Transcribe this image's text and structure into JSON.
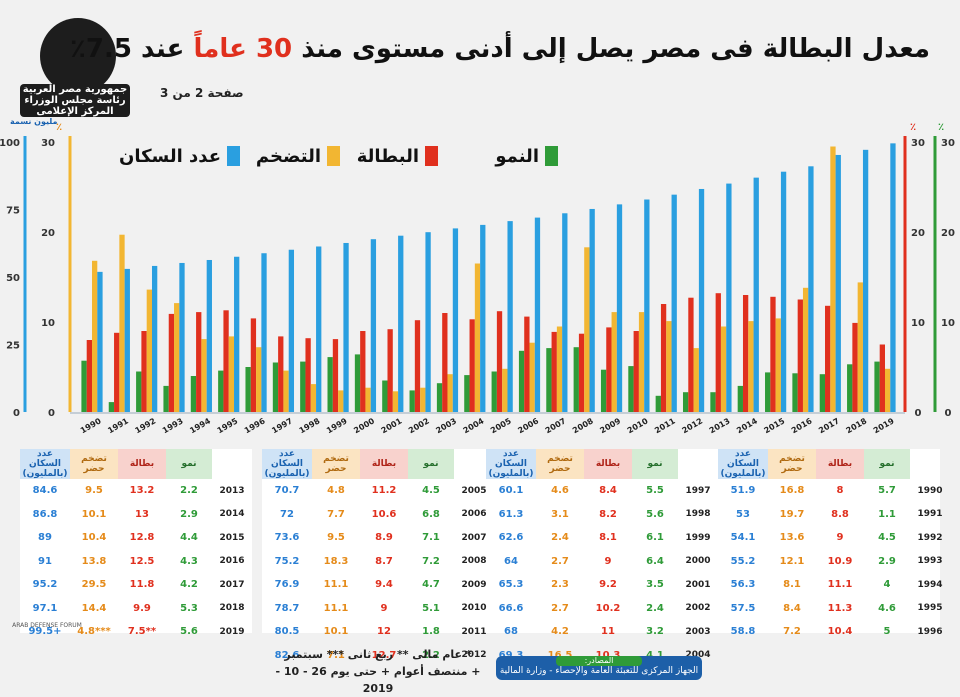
{
  "header": {
    "title_main": "معدل البطالة فى مصر يصل إلى أدنى مستوى منذ",
    "title_years": "30 عاماً",
    "title_at": "عند",
    "title_value": "7.5٪",
    "page": "صفحة 2 من 3"
  },
  "logo": {
    "line1": "جمهورية مصر العربية",
    "line2": "رئاسة مجلس الوزراء",
    "line3": "المركز الإعلامى"
  },
  "legend": {
    "growth": "النمو",
    "unemployment": "البطالة",
    "inflation": "التضخم",
    "population": "عدد السكان"
  },
  "axes": {
    "left_pop_unit": "مليون نسمة",
    "left_pct_unit": "٪",
    "right_unemp_unit": "٪",
    "right_growth_unit": "٪"
  },
  "colors": {
    "growth": "#2f9b38",
    "unemployment": "#e0301e",
    "inflation": "#f2b632",
    "population": "#2a9fe0"
  },
  "table_headers": {
    "population": "عدد السكان (بالمليون)",
    "inflation": "تضخم حضر",
    "unemployment": "بطالة",
    "growth": "نمو"
  },
  "tables": [
    {
      "rows": [
        {
          "year": "2013",
          "pop": "84.6",
          "inf": "9.5",
          "une": "13.2",
          "gro": "2.2"
        },
        {
          "year": "2014",
          "pop": "86.8",
          "inf": "10.1",
          "une": "13",
          "gro": "2.9"
        },
        {
          "year": "2015",
          "pop": "89",
          "inf": "10.4",
          "une": "12.8",
          "gro": "4.4"
        },
        {
          "year": "2016",
          "pop": "91",
          "inf": "13.8",
          "une": "12.5",
          "gro": "4.3"
        },
        {
          "year": "2017",
          "pop": "95.2",
          "inf": "29.5",
          "une": "11.8",
          "gro": "4.2"
        },
        {
          "year": "2018",
          "pop": "97.1",
          "inf": "14.4",
          "une": "9.9",
          "gro": "5.3"
        },
        {
          "year": "2019",
          "pop": "99.5+",
          "inf": "4.8***",
          "une": "7.5**",
          "gro": "5.6"
        }
      ]
    },
    {
      "rows": [
        {
          "year": "2005",
          "pop": "70.7",
          "inf": "4.8",
          "une": "11.2",
          "gro": "4.5"
        },
        {
          "year": "2006",
          "pop": "72",
          "inf": "7.7",
          "une": "10.6",
          "gro": "6.8"
        },
        {
          "year": "2007",
          "pop": "73.6",
          "inf": "9.5",
          "une": "8.9",
          "gro": "7.1"
        },
        {
          "year": "2008",
          "pop": "75.2",
          "inf": "18.3",
          "une": "8.7",
          "gro": "7.2"
        },
        {
          "year": "2009",
          "pop": "76.9",
          "inf": "11.1",
          "une": "9.4",
          "gro": "4.7"
        },
        {
          "year": "2010",
          "pop": "78.7",
          "inf": "11.1",
          "une": "9",
          "gro": "5.1"
        },
        {
          "year": "2011",
          "pop": "80.5",
          "inf": "10.1",
          "une": "12",
          "gro": "1.8"
        },
        {
          "year": "2012",
          "pop": "82.6",
          "inf": "7.1",
          "une": "12.7",
          "gro": "2.2"
        }
      ]
    },
    {
      "rows": [
        {
          "year": "1997",
          "pop": "60.1",
          "inf": "4.6",
          "une": "8.4",
          "gro": "5.5"
        },
        {
          "year": "1998",
          "pop": "61.3",
          "inf": "3.1",
          "une": "8.2",
          "gro": "5.6"
        },
        {
          "year": "1999",
          "pop": "62.6",
          "inf": "2.4",
          "une": "8.1",
          "gro": "6.1"
        },
        {
          "year": "2000",
          "pop": "64",
          "inf": "2.7",
          "une": "9",
          "gro": "6.4"
        },
        {
          "year": "2001",
          "pop": "65.3",
          "inf": "2.3",
          "une": "9.2",
          "gro": "3.5"
        },
        {
          "year": "2002",
          "pop": "66.6",
          "inf": "2.7",
          "une": "10.2",
          "gro": "2.4"
        },
        {
          "year": "2003",
          "pop": "68",
          "inf": "4.2",
          "une": "11",
          "gro": "3.2"
        },
        {
          "year": "2004",
          "pop": "69.3",
          "inf": "16.5",
          "une": "10.3",
          "gro": "4.1"
        }
      ]
    },
    {
      "rows": [
        {
          "year": "1990",
          "pop": "51.9",
          "inf": "16.8",
          "une": "8",
          "gro": "5.7"
        },
        {
          "year": "1991",
          "pop": "53",
          "inf": "19.7",
          "une": "8.8",
          "gro": "1.1"
        },
        {
          "year": "1992",
          "pop": "54.1",
          "inf": "13.6",
          "une": "9",
          "gro": "4.5"
        },
        {
          "year": "1993",
          "pop": "55.2",
          "inf": "12.1",
          "une": "10.9",
          "gro": "2.9"
        },
        {
          "year": "1994",
          "pop": "56.3",
          "inf": "8.1",
          "une": "11.1",
          "gro": "4"
        },
        {
          "year": "1995",
          "pop": "57.5",
          "inf": "8.4",
          "une": "11.3",
          "gro": "4.6"
        },
        {
          "year": "1996",
          "pop": "58.8",
          "inf": "7.2",
          "une": "10.4",
          "gro": "5"
        }
      ]
    }
  ],
  "notes": {
    "line1": "* عام مالى ** ربع ثانى *** سبتمبر",
    "line2": "+ منتصف أعوام + حتى يوم 26 - 10 - 2019"
  },
  "sources": {
    "title": "المصادر:",
    "text": "الجهاز المركزى للتعبئة العامة والإحصاء - وزارة المالية"
  },
  "watermark": "ARAB DEFENSE FORUM",
  "chart_data": {
    "type": "bar",
    "categories": [
      "1990",
      "1991",
      "1992",
      "1993",
      "1994",
      "1995",
      "1996",
      "1997",
      "1998",
      "1999",
      "2000",
      "2001",
      "2002",
      "2003",
      "2004",
      "2005",
      "2006",
      "2007",
      "2008",
      "2009",
      "2010",
      "2011",
      "2012",
      "2013",
      "2014",
      "2015",
      "2016",
      "2017",
      "2018",
      "2019"
    ],
    "series": [
      {
        "name": "النمو",
        "axis": "pct",
        "values": [
          5.7,
          1.1,
          4.5,
          2.9,
          4,
          4.6,
          5,
          5.5,
          5.6,
          6.1,
          6.4,
          3.5,
          2.4,
          3.2,
          4.1,
          4.5,
          6.8,
          7.1,
          7.2,
          4.7,
          5.1,
          1.8,
          2.2,
          2.2,
          2.9,
          4.4,
          4.3,
          4.2,
          5.3,
          5.6
        ]
      },
      {
        "name": "البطالة",
        "axis": "pct",
        "values": [
          8,
          8.8,
          9,
          10.9,
          11.1,
          11.3,
          10.4,
          8.4,
          8.2,
          8.1,
          9,
          9.2,
          10.2,
          11,
          10.3,
          11.2,
          10.6,
          8.9,
          8.7,
          9.4,
          9,
          12,
          12.7,
          13.2,
          13,
          12.8,
          12.5,
          11.8,
          9.9,
          7.5
        ]
      },
      {
        "name": "التضخم",
        "axis": "pct",
        "values": [
          16.8,
          19.7,
          13.6,
          12.1,
          8.1,
          8.4,
          7.2,
          4.6,
          3.1,
          2.4,
          2.7,
          2.3,
          2.7,
          4.2,
          16.5,
          4.8,
          7.7,
          9.5,
          18.3,
          11.1,
          11.1,
          10.1,
          7.1,
          9.5,
          10.1,
          10.4,
          13.8,
          29.5,
          14.4,
          4.8
        ]
      },
      {
        "name": "عدد السكان",
        "axis": "pop",
        "values": [
          51.9,
          53,
          54.1,
          55.2,
          56.3,
          57.5,
          58.8,
          60.1,
          61.3,
          62.6,
          64,
          65.3,
          66.6,
          68,
          69.3,
          70.7,
          72,
          73.6,
          75.2,
          76.9,
          78.7,
          80.5,
          82.6,
          84.6,
          86.8,
          89,
          91,
          95.2,
          97.1,
          99.5
        ]
      }
    ],
    "y_pct_ticks": [
      "0",
      "10",
      "20",
      "30"
    ],
    "y_pop_ticks": [
      "0",
      "25",
      "50",
      "75",
      "100"
    ],
    "ylim_pct": [
      0,
      30
    ],
    "ylim_pop": [
      0,
      100
    ]
  }
}
